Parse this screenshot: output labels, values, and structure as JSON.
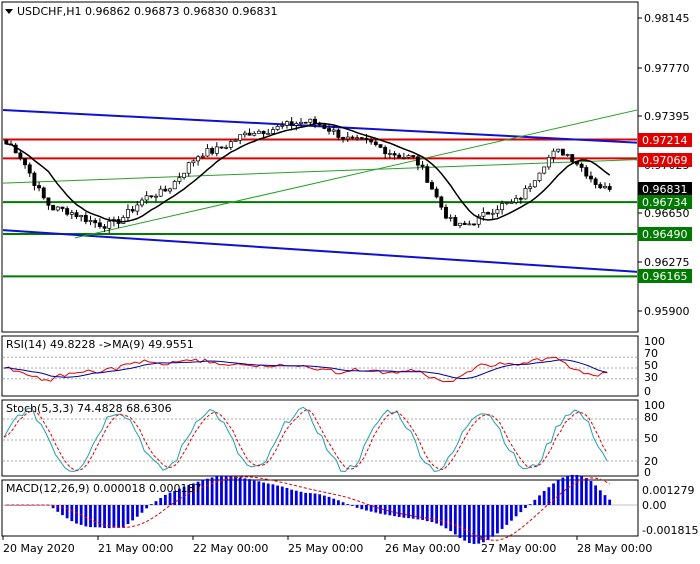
{
  "main": {
    "title": "USDCHF,H1  0.96862 0.96873 0.96830 0.96831",
    "y_ticks": [
      "0.98145",
      "0.97770",
      "0.97395",
      "0.97025",
      "0.96650",
      "0.96275",
      "0.95900"
    ],
    "levels": [
      {
        "label": "0.97214",
        "color": "#e00000"
      },
      {
        "label": "0.97069",
        "color": "#e00000"
      },
      {
        "label": "0.96734",
        "color": "#007a00"
      },
      {
        "label": "0.96490",
        "color": "#007a00"
      },
      {
        "label": "0.96165",
        "color": "#007a00"
      }
    ],
    "current_price": "0.96831"
  },
  "rsi": {
    "title": "RSI(14) 49.8228  ->MA(9) 49.9551",
    "y_ticks": [
      "100",
      "70",
      "50",
      "30",
      "0"
    ]
  },
  "stoch": {
    "title": "Stoch(5,3,3) 74.4828 68.6306",
    "y_ticks": [
      "100",
      "80",
      "50",
      "20",
      "0"
    ]
  },
  "macd": {
    "title": "MACD(12,26,9) 0.000018 0.000187",
    "y_ticks": [
      "0.001279",
      "0.00",
      "-0.001815"
    ]
  },
  "x_ticks": [
    "20 May 2020",
    "21 May 00:00",
    "22 May 00:00",
    "25 May 00:00",
    "26 May 00:00",
    "27 May 00:00",
    "28 May 00:00"
  ],
  "colors": {
    "bull": "#ffffff",
    "bear": "#000000",
    "ma": "#000000",
    "channel": "#1010d0",
    "trend": "#2aa02a",
    "resistance": "#e00000",
    "support": "#007a00",
    "rsi_line": "#e00000",
    "rsi_ma": "#0000a0",
    "stoch_main": "#20a0b0",
    "stoch_signal": "#e00000",
    "macd_hist": "#0000e0",
    "macd_signal": "#e00000"
  },
  "chart_data": [
    {
      "type": "candlestick",
      "symbol": "USDCHF",
      "timeframe": "H1",
      "ylim": [
        0.958,
        0.983
      ],
      "close_series": [
        {
          "x": "20 May 2020",
          "close": 0.9718
        },
        {
          "x": "20 May 12:00",
          "close": 0.9668
        },
        {
          "x": "21 May 00:00",
          "close": 0.9656
        },
        {
          "x": "21 May 12:00",
          "close": 0.968
        },
        {
          "x": "22 May 00:00",
          "close": 0.9712
        },
        {
          "x": "22 May 12:00",
          "close": 0.9728
        },
        {
          "x": "25 May 00:00",
          "close": 0.9735
        },
        {
          "x": "25 May 12:00",
          "close": 0.972
        },
        {
          "x": "26 May 00:00",
          "close": 0.9708
        },
        {
          "x": "26 May 12:00",
          "close": 0.9655
        },
        {
          "x": "27 May 00:00",
          "close": 0.9672
        },
        {
          "x": "27 May 12:00",
          "close": 0.9712
        },
        {
          "x": "28 May 00:00",
          "close": 0.9683
        }
      ],
      "levels": [
        0.97214,
        0.97069,
        0.96734,
        0.9649,
        0.96165
      ]
    },
    {
      "type": "line",
      "name": "RSI(14)",
      "last": 49.8228,
      "ma_last": 49.9551,
      "ylim": [
        0,
        100
      ]
    },
    {
      "type": "line",
      "name": "Stoch(5,3,3)",
      "main_last": 74.4828,
      "signal_last": 68.6306,
      "ylim": [
        0,
        100
      ]
    },
    {
      "type": "bar",
      "name": "MACD(12,26,9)",
      "main_last": 1.8e-05,
      "signal_last": 0.000187,
      "ylim": [
        -0.001815,
        0.001279
      ]
    }
  ]
}
